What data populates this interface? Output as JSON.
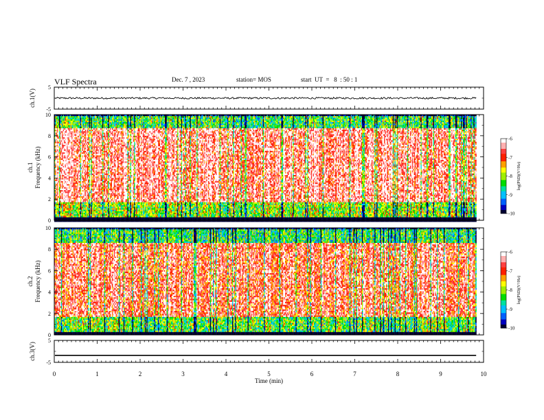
{
  "header": {
    "title": "VLF Spectra",
    "date": "Dec. 7 , 2023",
    "station": "station= MOS",
    "start_time": "start  UT  =   8  : 50 : 1"
  },
  "colors": {
    "spectrogram_palette": [
      "#000033",
      "#0000c0",
      "#0060ff",
      "#00c0ff",
      "#00e0a0",
      "#00dd00",
      "#a0ee00",
      "#ffff00",
      "#ffa000",
      "#ff2000",
      "#ff4040",
      "#ffb0b0",
      "#ffffff"
    ]
  },
  "chart_data": [
    {
      "type": "line",
      "panel": "ch.1",
      "ylabel": "ch.1(V)",
      "ylim": [
        -5,
        5
      ],
      "yticks": [
        "5",
        "-5"
      ],
      "baseline": 0,
      "amplitude_range": [
        -0.4,
        0.4
      ]
    },
    {
      "type": "heatmap",
      "panel": "ch.1",
      "ylabel": "ch.1 Frequency (kHz)",
      "ylabel_line1": "ch.1",
      "ylabel_line2": "Frequency (kHz)",
      "ylim": [
        0,
        10
      ],
      "yticks": [
        "0",
        "2",
        "4",
        "6",
        "8",
        "10"
      ],
      "xlim": [
        0,
        10
      ],
      "xlabel": "Time (min)",
      "data_end_min": 9.83,
      "colorbar": {
        "label": "log(PSD)(V²/Hz)",
        "range": [
          -10,
          -6
        ],
        "ticks": [
          "-6",
          "-7",
          "-8",
          "-9",
          "-10"
        ]
      },
      "bands": [
        {
          "from_khz": 0,
          "to_khz": 0.3,
          "log_psd": -10
        },
        {
          "from_khz": 0.3,
          "to_khz": 1.8,
          "log_psd": -8.2
        },
        {
          "from_khz": 1.8,
          "to_khz": 8.8,
          "log_psd": -6.6
        },
        {
          "from_khz": 8.8,
          "to_khz": 10,
          "log_psd": -8.5
        }
      ]
    },
    {
      "type": "heatmap",
      "panel": "ch.2",
      "ylabel": "ch.2 Frequency (kHz)",
      "ylabel_line1": "ch.2",
      "ylabel_line2": "Frequency (kHz)",
      "ylim": [
        0,
        10
      ],
      "yticks": [
        "0",
        "2",
        "4",
        "6",
        "8",
        "10"
      ],
      "xlim": [
        0,
        10
      ],
      "xlabel": "Time (min)",
      "data_end_min": 9.83,
      "colorbar": {
        "label": "log(PSD)(V²/Hz)",
        "range": [
          -10,
          -6
        ],
        "ticks": [
          "-6",
          "-7",
          "-8",
          "-9",
          "-10"
        ]
      },
      "bands": [
        {
          "from_khz": 0,
          "to_khz": 0.3,
          "log_psd": -10
        },
        {
          "from_khz": 0.3,
          "to_khz": 1.8,
          "log_psd": -8.4
        },
        {
          "from_khz": 1.8,
          "to_khz": 8.6,
          "log_psd": -6.8
        },
        {
          "from_khz": 8.6,
          "to_khz": 10,
          "log_psd": -8.6
        }
      ]
    },
    {
      "type": "line",
      "panel": "ch.3",
      "ylabel": "ch.3(V)",
      "ylim": [
        -5,
        5
      ],
      "yticks": [
        "5",
        "-5"
      ],
      "baseline": -1.8,
      "amplitude_range": [
        0,
        0
      ]
    }
  ],
  "x_axis": {
    "label": "Time (min)",
    "range": [
      0,
      10
    ],
    "ticks": [
      "0",
      "1",
      "2",
      "3",
      "4",
      "5",
      "6",
      "7",
      "8",
      "9",
      "10"
    ]
  }
}
